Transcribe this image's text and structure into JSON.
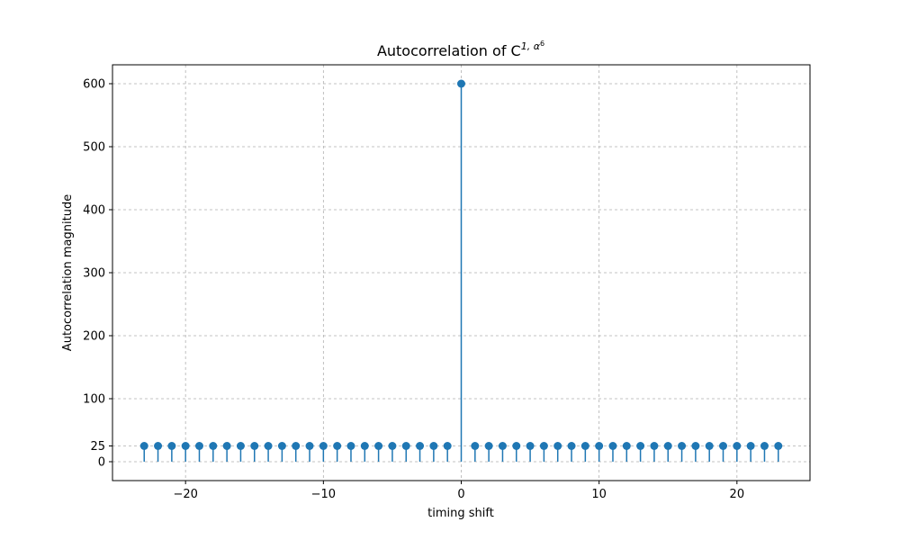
{
  "chart_data": {
    "type": "stem",
    "title": "Autocorrelation of C",
    "title_sup": "1, α",
    "title_supsup": "6",
    "xlabel": "timing shift",
    "ylabel": "Autocorrelation magnitude",
    "xlim": [
      -25.3,
      25.3
    ],
    "ylim": [
      -30,
      630
    ],
    "xticks": [
      -20,
      -10,
      0,
      10,
      20
    ],
    "xtick_labels": [
      "−20",
      "−10",
      "0",
      "10",
      "20"
    ],
    "yticks": [
      0,
      25,
      100,
      200,
      300,
      400,
      500,
      600
    ],
    "ytick_labels": [
      "0",
      "25",
      "100",
      "200",
      "300",
      "400",
      "500",
      "600"
    ],
    "grid": true,
    "color": "#1f77b4",
    "x": [
      -23,
      -22,
      -21,
      -20,
      -19,
      -18,
      -17,
      -16,
      -15,
      -14,
      -13,
      -12,
      -11,
      -10,
      -9,
      -8,
      -7,
      -6,
      -5,
      -4,
      -3,
      -2,
      -1,
      0,
      1,
      2,
      3,
      4,
      5,
      6,
      7,
      8,
      9,
      10,
      11,
      12,
      13,
      14,
      15,
      16,
      17,
      18,
      19,
      20,
      21,
      22,
      23
    ],
    "y": [
      25,
      25,
      25,
      25,
      25,
      25,
      25,
      25,
      25,
      25,
      25,
      25,
      25,
      25,
      25,
      25,
      25,
      25,
      25,
      25,
      25,
      25,
      25,
      600,
      25,
      25,
      25,
      25,
      25,
      25,
      25,
      25,
      25,
      25,
      25,
      25,
      25,
      25,
      25,
      25,
      25,
      25,
      25,
      25,
      25,
      25,
      25
    ]
  }
}
